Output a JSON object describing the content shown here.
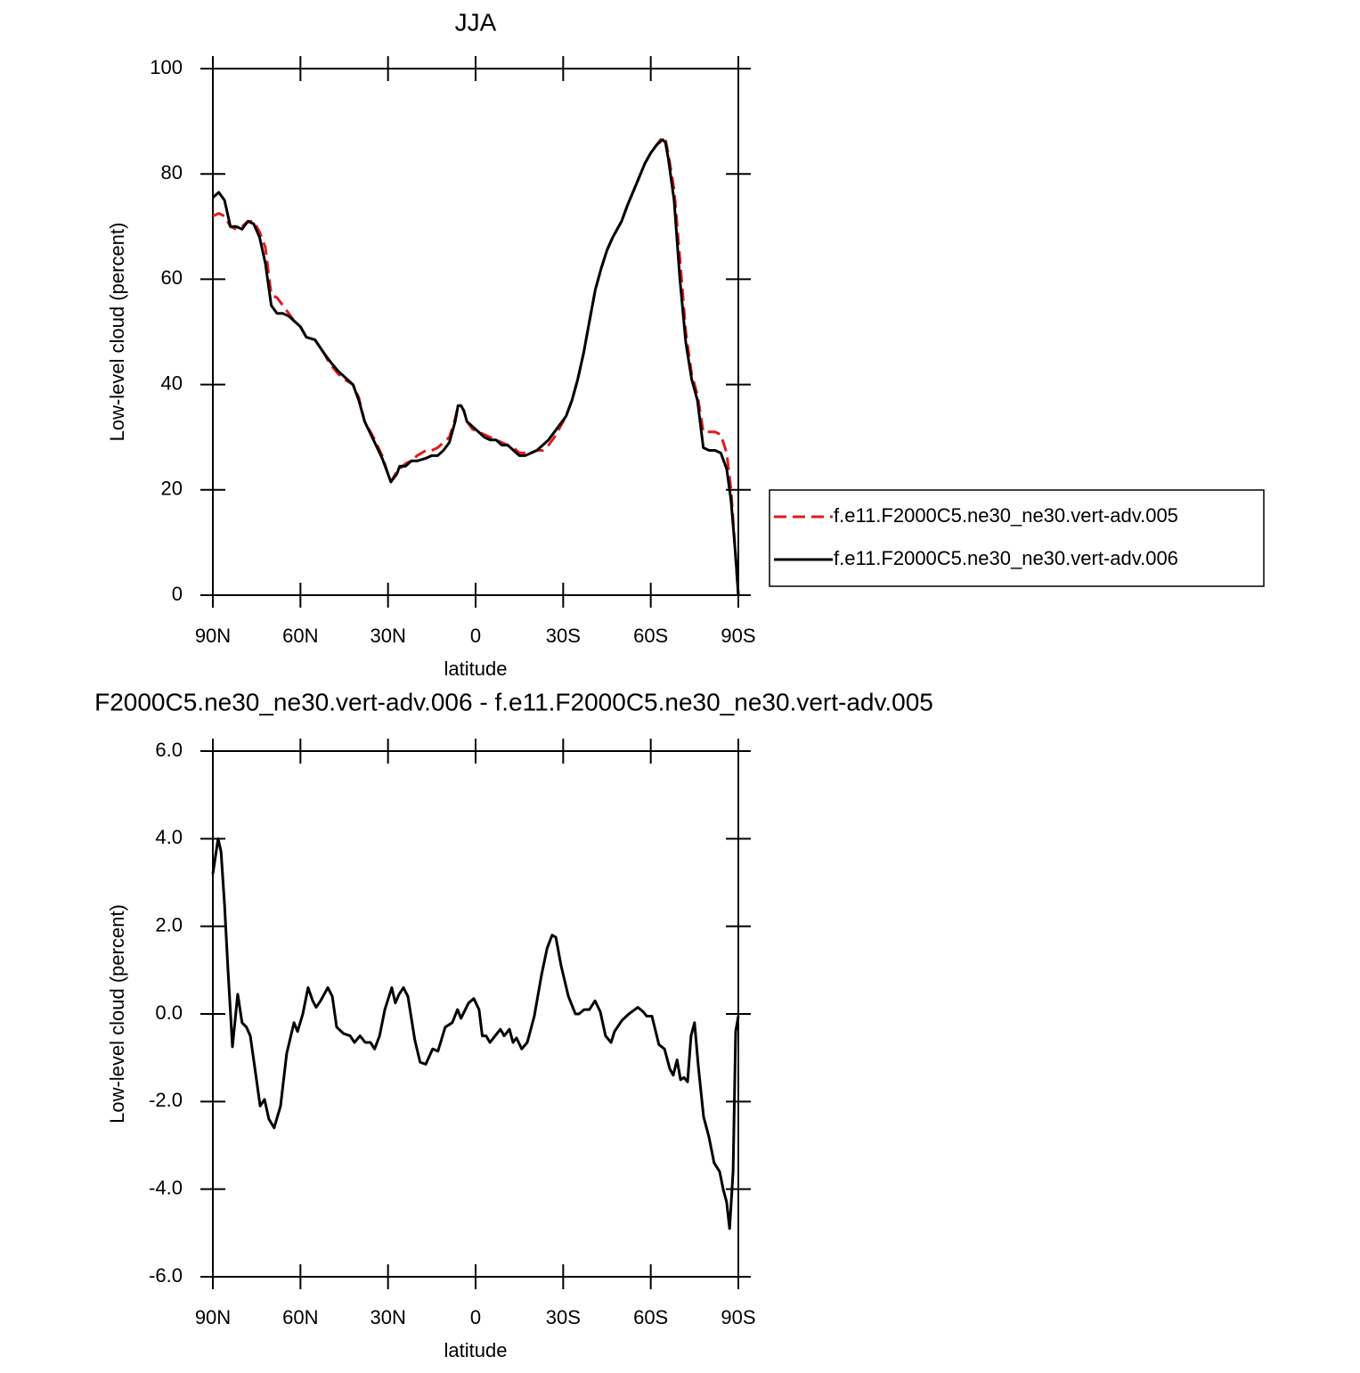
{
  "chart_data": [
    {
      "type": "line",
      "title": "JJA",
      "xlabel": "latitude",
      "ylabel": "Low-level cloud (percent)",
      "x": [
        90,
        88,
        86,
        84,
        82,
        80,
        78,
        76,
        74,
        72,
        70,
        68,
        66,
        64,
        62,
        60,
        58,
        55,
        52,
        50,
        47,
        45,
        42,
        40,
        38,
        35,
        32,
        30,
        29,
        27,
        26,
        24,
        22,
        20,
        17,
        15,
        13,
        11,
        9,
        7,
        6,
        5,
        4,
        3,
        1,
        -1,
        -3,
        -5,
        -7,
        -9,
        -11,
        -13,
        -15,
        -17,
        -19,
        -21,
        -23,
        -25,
        -27,
        -29,
        -31,
        -33,
        -35,
        -37,
        -39,
        -41,
        -43,
        -45,
        -47,
        -50,
        -52,
        -55,
        -58,
        -60,
        -62,
        -64,
        -65,
        -66,
        -68,
        -70,
        -72,
        -74,
        -76,
        -78,
        -80,
        -82,
        -84,
        -86,
        -87.5,
        -89,
        -90
      ],
      "series": [
        {
          "name": "f.e11.F2000C5.ne30_ne30.vert-adv.005",
          "color": "#e41a1c",
          "linestyle": "dashed",
          "values": [
            72,
            72.5,
            72,
            70,
            69.5,
            70,
            71,
            71,
            69,
            66,
            57,
            56.5,
            55,
            53.5,
            52,
            51,
            49,
            48.5,
            46,
            44,
            42,
            41,
            40,
            37.5,
            33,
            30,
            26.5,
            23,
            21.5,
            23.5,
            24,
            25,
            25.5,
            26.5,
            27.5,
            27.5,
            28,
            29,
            30,
            33.5,
            36,
            36,
            35,
            33,
            31.5,
            31,
            30.5,
            30,
            29.5,
            29,
            28.5,
            28,
            27,
            27,
            27,
            27.5,
            27.5,
            28.5,
            30,
            32,
            34,
            37,
            41,
            46,
            52,
            58,
            62,
            65.5,
            68,
            71,
            74,
            78,
            82,
            84,
            85.5,
            87,
            86.5,
            84,
            77,
            64,
            50,
            42,
            38,
            31,
            31,
            31,
            30.5,
            27,
            20,
            8,
            0
          ]
        },
        {
          "name": "f.e11.F2000C5.ne30_ne30.vert-adv.006",
          "color": "#000000",
          "linestyle": "solid",
          "values": [
            75.5,
            76.5,
            75,
            70,
            70,
            69.5,
            71,
            70.5,
            68,
            63,
            55,
            53.5,
            53.5,
            53,
            52,
            51,
            49,
            48.5,
            46,
            44.5,
            42.5,
            41.5,
            40,
            37,
            33,
            29.5,
            26,
            23,
            21.5,
            23,
            24.5,
            24.5,
            25.5,
            25.5,
            26,
            26.5,
            26.5,
            27.5,
            29,
            33,
            36,
            36,
            35,
            33,
            32,
            31,
            30,
            29.5,
            29.5,
            28.5,
            28.5,
            27.5,
            26.5,
            26.5,
            27,
            27.5,
            28.5,
            29.5,
            31,
            32.5,
            34,
            37,
            41,
            46,
            52,
            58,
            62,
            65.5,
            68,
            71,
            74,
            78,
            82,
            84,
            85.5,
            86.5,
            86,
            83,
            75,
            60,
            48,
            41,
            37,
            28,
            27.5,
            27.5,
            27,
            24,
            18,
            8,
            0
          ]
        }
      ],
      "xlim": [
        90,
        -90
      ],
      "xticks": [
        {
          "value": 90,
          "label": "90N"
        },
        {
          "value": 60,
          "label": "60N"
        },
        {
          "value": 30,
          "label": "30N"
        },
        0,
        {
          "value": -30,
          "label": "30S"
        },
        {
          "value": -60,
          "label": "60S"
        },
        {
          "value": -90,
          "label": "90S"
        }
      ],
      "ylim": [
        0,
        100
      ],
      "yticks": [
        0,
        20,
        40,
        60,
        80,
        100
      ],
      "legend": "right"
    },
    {
      "type": "line",
      "title": "F2000C5.ne30_ne30.vert-adv.006 - f.e11.F2000C5.ne30_ne30.vert-adv.005",
      "xlabel": "latitude",
      "ylabel": "Low-level cloud (percent)",
      "x": [
        90,
        88.2,
        87.2,
        86,
        84.8,
        83.3,
        81.5,
        80,
        78.5,
        77.2,
        75.7,
        73.8,
        72.3,
        70.8,
        69,
        66.8,
        64.7,
        62.2,
        61,
        59.2,
        57.4,
        55.8,
        54.6,
        53.1,
        50.6,
        49.1,
        47.6,
        45.2,
        43,
        41.5,
        39.6,
        37.8,
        36,
        34.6,
        32.9,
        31.1,
        28.7,
        27.5,
        26.2,
        24.7,
        23.2,
        20.8,
        19,
        17.1,
        14.7,
        12.9,
        10.4,
        8,
        6.2,
        5,
        2.4,
        0.6,
        -1.2,
        -2.3,
        -3.6,
        -4.9,
        -6.7,
        -8.5,
        -9.8,
        -11.6,
        -12.8,
        -14,
        -15.8,
        -17.7,
        -20.1,
        -22.6,
        -24.5,
        -26.2,
        -27.5,
        -29.3,
        -31.8,
        -34.2,
        -35.4,
        -37.2,
        -39,
        -40.9,
        -42.7,
        -44.5,
        -46.4,
        -47.6,
        -50.1,
        -52.5,
        -55.6,
        -57.4,
        -58.6,
        -60.4,
        -62.8,
        -64.7,
        -66.5,
        -67.7,
        -69,
        -70.2,
        -71.4,
        -72.6,
        -73.8,
        -75,
        -76.3,
        -78.1,
        -79.9,
        -81.7,
        -83.6,
        -84.8,
        -86,
        -87,
        -88.2,
        -89.1,
        -90
      ],
      "values": [
        3.2,
        4.0,
        3.7,
        2.5,
        1.0,
        -0.75,
        0.45,
        -0.2,
        -0.3,
        -0.5,
        -1.2,
        -2.1,
        -1.95,
        -2.4,
        -2.6,
        -2.1,
        -0.9,
        -0.2,
        -0.4,
        0.0,
        0.6,
        0.3,
        0.15,
        0.3,
        0.6,
        0.4,
        -0.3,
        -0.45,
        -0.5,
        -0.65,
        -0.5,
        -0.65,
        -0.65,
        -0.8,
        -0.5,
        0.1,
        0.6,
        0.25,
        0.45,
        0.6,
        0.4,
        -0.6,
        -1.1,
        -1.15,
        -0.8,
        -0.85,
        -0.3,
        -0.2,
        0.1,
        -0.1,
        0.25,
        0.35,
        0.1,
        -0.5,
        -0.5,
        -0.65,
        -0.5,
        -0.35,
        -0.5,
        -0.35,
        -0.65,
        -0.55,
        -0.8,
        -0.65,
        -0.05,
        0.9,
        1.5,
        1.8,
        1.75,
        1.1,
        0.4,
        0.0,
        0.0,
        0.1,
        0.1,
        0.3,
        0.05,
        -0.5,
        -0.65,
        -0.4,
        -0.15,
        0.0,
        0.15,
        0.05,
        -0.05,
        -0.05,
        -0.7,
        -0.8,
        -1.25,
        -1.4,
        -1.05,
        -1.5,
        -1.45,
        -1.55,
        -0.5,
        -0.2,
        -1.2,
        -2.35,
        -2.8,
        -3.4,
        -3.6,
        -4.0,
        -4.3,
        -4.9,
        -3.6,
        -0.4,
        -0.05
      ],
      "color": "#000000",
      "xlim": [
        90,
        -90
      ],
      "xticks": [
        {
          "value": 90,
          "label": "90N"
        },
        {
          "value": 60,
          "label": "60N"
        },
        {
          "value": 30,
          "label": "30N"
        },
        0,
        {
          "value": -30,
          "label": "30S"
        },
        {
          "value": -60,
          "label": "60S"
        },
        {
          "value": -90,
          "label": "90S"
        }
      ],
      "ylim": [
        -6,
        6
      ],
      "yticks": [
        {
          "value": -6,
          "label": "-6.0"
        },
        {
          "value": -4,
          "label": "-4.0"
        },
        {
          "value": -2,
          "label": "-2.0"
        },
        {
          "value": 0,
          "label": "0.0"
        },
        {
          "value": 2,
          "label": "2.0"
        },
        {
          "value": 4,
          "label": "4.0"
        },
        {
          "value": 6,
          "label": "6.0"
        }
      ]
    }
  ]
}
